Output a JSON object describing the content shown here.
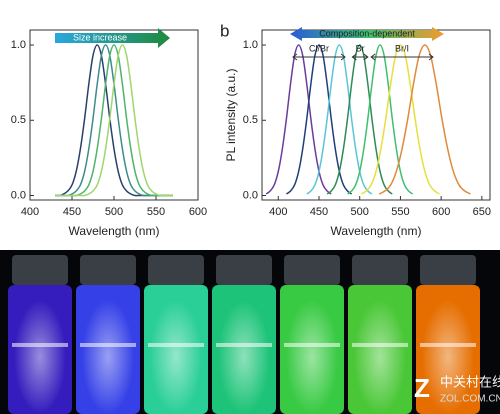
{
  "chart_data": [
    {
      "type": "line",
      "x_label": "Wavelength (nm)",
      "annotations": [
        "Size increase"
      ],
      "x": [
        430,
        435,
        440,
        445,
        450,
        455,
        460,
        465,
        470,
        475,
        480,
        485,
        490,
        495,
        500,
        505,
        510,
        515,
        520,
        525,
        530,
        535,
        540,
        545,
        550,
        555,
        560,
        565,
        570
      ],
      "xlim": [
        400,
        600
      ],
      "xticks": [
        400,
        450,
        500,
        550,
        600
      ],
      "ylim": [
        -0.03,
        1.1
      ],
      "yticks": [
        {
          "value": 0,
          "label": "0.0"
        },
        0.5,
        {
          "value": 1,
          "label": "1.0"
        }
      ],
      "series": [
        {
          "color": "#2b3f6e",
          "values": [
            0,
            0,
            0.01,
            0.03,
            0.07,
            0.16,
            0.31,
            0.51,
            0.74,
            0.93,
            1,
            0.93,
            0.74,
            0.51,
            0.31,
            0.16,
            0.07,
            0.03,
            0.01,
            0,
            0,
            0,
            0,
            0,
            0,
            0,
            0,
            0,
            0
          ]
        },
        {
          "color": "#3d8c8a",
          "values": [
            0,
            0,
            0,
            0,
            0.01,
            0.03,
            0.07,
            0.16,
            0.31,
            0.51,
            0.74,
            0.93,
            1,
            0.93,
            0.74,
            0.51,
            0.31,
            0.16,
            0.07,
            0.03,
            0.01,
            0,
            0,
            0,
            0,
            0,
            0,
            0,
            0
          ]
        },
        {
          "color": "#4fb36c",
          "values": [
            0,
            0,
            0,
            0,
            0,
            0,
            0.01,
            0.03,
            0.07,
            0.16,
            0.31,
            0.51,
            0.74,
            0.93,
            1,
            0.93,
            0.74,
            0.51,
            0.31,
            0.16,
            0.07,
            0.03,
            0.01,
            0,
            0,
            0,
            0,
            0,
            0
          ]
        },
        {
          "color": "#9fd66e",
          "values": [
            0,
            0,
            0,
            0,
            0,
            0,
            0,
            0,
            0.01,
            0.03,
            0.07,
            0.16,
            0.31,
            0.51,
            0.74,
            0.93,
            1,
            0.93,
            0.74,
            0.51,
            0.31,
            0.16,
            0.07,
            0.03,
            0.01,
            0,
            0,
            0,
            0
          ]
        }
      ]
    },
    {
      "type": "line",
      "panel_label": "b",
      "x_label": "Wavelength (nm)",
      "y_label": "PL intensity (a.u.)",
      "annotations": [
        "Composition-dependent",
        "Cl/Br",
        "Br",
        "Br/I"
      ],
      "xlim": [
        380,
        660
      ],
      "xticks": [
        400,
        450,
        500,
        550,
        600,
        650
      ],
      "ylim": [
        -0.03,
        1.1
      ],
      "yticks": [
        {
          "value": 0,
          "label": "0.0"
        },
        0.5,
        {
          "value": 1,
          "label": "1.0"
        }
      ],
      "series": [
        {
          "color": "#6a3d9a",
          "x": [
            385,
            390,
            395,
            400,
            405,
            410,
            415,
            420,
            425,
            430,
            435,
            440,
            445,
            450,
            455,
            460,
            465
          ],
          "values": [
            0.01,
            0.03,
            0.07,
            0.16,
            0.31,
            0.51,
            0.74,
            0.93,
            1,
            0.93,
            0.74,
            0.51,
            0.31,
            0.16,
            0.07,
            0.03,
            0.01
          ]
        },
        {
          "color": "#1f3f7a",
          "x": [
            410,
            415,
            420,
            425,
            430,
            435,
            440,
            445,
            450,
            455,
            460,
            465,
            470,
            475,
            480,
            485,
            490
          ],
          "values": [
            0.01,
            0.03,
            0.07,
            0.16,
            0.31,
            0.51,
            0.74,
            0.93,
            1,
            0.93,
            0.74,
            0.51,
            0.31,
            0.16,
            0.07,
            0.03,
            0.01
          ]
        },
        {
          "color": "#58c6d6",
          "x": [
            435,
            440,
            445,
            450,
            455,
            460,
            465,
            470,
            475,
            480,
            485,
            490,
            495,
            500,
            505,
            510,
            515
          ],
          "values": [
            0.01,
            0.03,
            0.07,
            0.16,
            0.31,
            0.51,
            0.74,
            0.93,
            1,
            0.93,
            0.74,
            0.51,
            0.31,
            0.16,
            0.07,
            0.03,
            0.01
          ]
        },
        {
          "color": "#2e8b57",
          "x": [
            460,
            465,
            470,
            475,
            480,
            485,
            490,
            495,
            500,
            505,
            510,
            515,
            520,
            525,
            530,
            535,
            540
          ],
          "values": [
            0.01,
            0.03,
            0.07,
            0.16,
            0.31,
            0.51,
            0.74,
            0.93,
            1,
            0.93,
            0.74,
            0.51,
            0.31,
            0.16,
            0.07,
            0.03,
            0.01
          ]
        },
        {
          "color": "#3fbf6f",
          "x": [
            485,
            490,
            495,
            500,
            505,
            510,
            515,
            520,
            525,
            530,
            535,
            540,
            545,
            550,
            555,
            560,
            565
          ],
          "values": [
            0.01,
            0.03,
            0.07,
            0.16,
            0.31,
            0.51,
            0.74,
            0.93,
            1,
            0.93,
            0.74,
            0.51,
            0.31,
            0.16,
            0.07,
            0.03,
            0.01
          ]
        },
        {
          "color": "#e6df3c",
          "x": [
            502,
            508,
            514,
            520,
            526,
            532,
            538,
            544,
            550,
            556,
            562,
            568,
            574,
            580,
            586,
            592,
            598
          ],
          "values": [
            0.01,
            0.03,
            0.07,
            0.16,
            0.31,
            0.51,
            0.74,
            0.93,
            1,
            0.93,
            0.74,
            0.51,
            0.31,
            0.16,
            0.07,
            0.03,
            0.01
          ]
        },
        {
          "color": "#e0893a",
          "x": [
            524,
            531,
            538,
            545,
            552,
            559,
            566,
            573,
            580,
            587,
            594,
            601,
            608,
            615,
            622,
            629,
            636
          ],
          "values": [
            0.01,
            0.03,
            0.07,
            0.16,
            0.31,
            0.51,
            0.74,
            0.93,
            1,
            0.93,
            0.74,
            0.51,
            0.31,
            0.16,
            0.07,
            0.03,
            0.01
          ]
        }
      ]
    }
  ],
  "watermark": {
    "name": "中关村在线",
    "site": "ZOL.COM.CN"
  }
}
